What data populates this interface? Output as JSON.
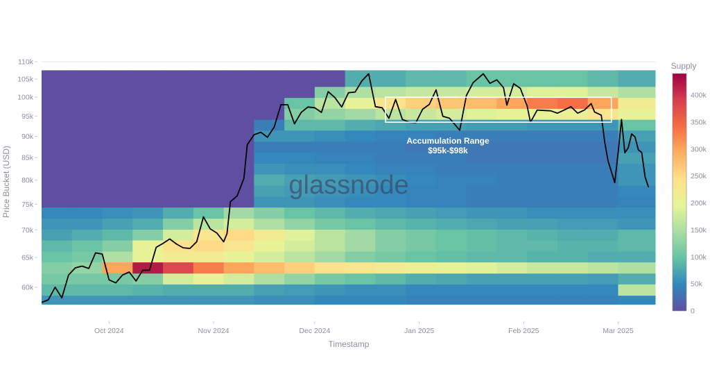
{
  "chart_data": {
    "type": "heatmap",
    "title": "",
    "xlabel": "Timestamp",
    "ylabel": "Price Bucket (USD)",
    "yscale": "log",
    "ylim": [
      57300,
      110000
    ],
    "xlim": [
      "2024-09-11",
      "2025-03-12"
    ],
    "y_ticks": [
      {
        "value": 60000,
        "label": "60k"
      },
      {
        "value": 65000,
        "label": "65k"
      },
      {
        "value": 70000,
        "label": "70k"
      },
      {
        "value": 75000,
        "label": "75k"
      },
      {
        "value": 80000,
        "label": "80k"
      },
      {
        "value": 85000,
        "label": "85k"
      },
      {
        "value": 90000,
        "label": "90k"
      },
      {
        "value": 95000,
        "label": "95k"
      },
      {
        "value": 100000,
        "label": "100k"
      },
      {
        "value": 105000,
        "label": "105k"
      },
      {
        "value": 110000,
        "label": "110k"
      }
    ],
    "x_ticks": [
      {
        "date": "2024-10-01",
        "label": "Oct 2024"
      },
      {
        "date": "2024-11-01",
        "label": "Nov 2024"
      },
      {
        "date": "2024-12-01",
        "label": "Dec 2024"
      },
      {
        "date": "2025-01-01",
        "label": "Jan 2025"
      },
      {
        "date": "2025-02-01",
        "label": "Feb 2025"
      },
      {
        "date": "2025-03-01",
        "label": "Mar 2025"
      }
    ],
    "colorbar": {
      "title": "Supply",
      "range": [
        0,
        440000
      ],
      "ticks": [
        {
          "value": 0,
          "label": "0"
        },
        {
          "value": 50000,
          "label": "50k"
        },
        {
          "value": 100000,
          "label": "100k"
        },
        {
          "value": 150000,
          "label": "150k"
        },
        {
          "value": 200000,
          "label": "200k"
        },
        {
          "value": 250000,
          "label": "250k"
        },
        {
          "value": 300000,
          "label": "300k"
        },
        {
          "value": 350000,
          "label": "350k"
        },
        {
          "value": 400000,
          "label": "400k"
        }
      ],
      "colorscale": [
        "#5e4fa2",
        "#3288bd",
        "#66c2a5",
        "#abdda4",
        "#e6f598",
        "#fee08b",
        "#fdae61",
        "#f46d43",
        "#d53e4f",
        "#9e0142"
      ]
    },
    "heatmap": {
      "value_unit": "k BTC",
      "column_dates": [
        "2024-09-11",
        "2024-09-20",
        "2024-09-29",
        "2024-10-08",
        "2024-10-17",
        "2024-10-26",
        "2024-11-04",
        "2024-11-13",
        "2024-11-22",
        "2024-12-01",
        "2024-12-10",
        "2024-12-19",
        "2024-12-28",
        "2025-01-06",
        "2025-01-15",
        "2025-01-24",
        "2025-02-02",
        "2025-02-11",
        "2025-02-20",
        "2025-03-01",
        "2025-03-12"
      ],
      "bucket_edges": [
        57300,
        58700,
        60500,
        62300,
        64200,
        66100,
        68100,
        70100,
        72200,
        74400,
        76600,
        78900,
        81300,
        83700,
        86200,
        88800,
        91500,
        94200,
        97000,
        99900,
        102900,
        107500
      ],
      "values": [
        [
          60,
          60,
          60,
          60,
          60,
          60,
          60,
          55,
          55,
          50,
          50,
          50,
          45,
          45,
          45,
          45,
          45,
          45,
          45,
          50
        ],
        [
          90,
          90,
          90,
          85,
          80,
          80,
          80,
          70,
          65,
          60,
          55,
          55,
          50,
          50,
          50,
          50,
          50,
          50,
          50,
          160
        ],
        [
          110,
          110,
          110,
          120,
          180,
          200,
          180,
          150,
          130,
          110,
          100,
          90,
          80,
          75,
          70,
          70,
          70,
          70,
          65,
          80
        ],
        [
          120,
          130,
          300,
          420,
          380,
          330,
          300,
          280,
          260,
          240,
          230,
          220,
          210,
          200,
          190,
          180,
          170,
          170,
          160,
          150
        ],
        [
          100,
          110,
          150,
          200,
          220,
          220,
          200,
          180,
          160,
          140,
          120,
          110,
          100,
          95,
          90,
          90,
          85,
          85,
          80,
          80
        ],
        [
          90,
          100,
          120,
          200,
          240,
          250,
          230,
          200,
          180,
          160,
          140,
          120,
          110,
          100,
          95,
          90,
          90,
          85,
          85,
          90
        ],
        [
          70,
          80,
          90,
          120,
          180,
          230,
          250,
          220,
          190,
          160,
          140,
          120,
          110,
          100,
          95,
          90,
          85,
          80,
          80,
          90
        ],
        [
          60,
          60,
          70,
          80,
          120,
          160,
          180,
          150,
          130,
          110,
          100,
          90,
          85,
          80,
          75,
          70,
          70,
          65,
          65,
          60
        ],
        [
          50,
          50,
          55,
          60,
          80,
          100,
          140,
          120,
          100,
          90,
          80,
          75,
          70,
          65,
          60,
          60,
          55,
          55,
          55,
          55
        ],
        [
          0,
          0,
          0,
          0,
          0,
          0,
          0,
          60,
          60,
          55,
          50,
          50,
          45,
          45,
          40,
          40,
          40,
          40,
          40,
          45
        ],
        [
          0,
          0,
          0,
          0,
          0,
          0,
          0,
          70,
          65,
          60,
          55,
          50,
          45,
          45,
          40,
          40,
          40,
          40,
          40,
          50
        ],
        [
          0,
          0,
          0,
          0,
          0,
          0,
          0,
          80,
          70,
          65,
          60,
          55,
          50,
          45,
          45,
          40,
          40,
          40,
          40,
          60
        ],
        [
          0,
          0,
          0,
          0,
          0,
          0,
          0,
          60,
          55,
          55,
          50,
          45,
          45,
          40,
          40,
          40,
          40,
          40,
          40,
          60
        ],
        [
          0,
          0,
          0,
          0,
          0,
          0,
          0,
          50,
          50,
          45,
          45,
          40,
          40,
          40,
          35,
          35,
          35,
          35,
          35,
          70
        ],
        [
          0,
          0,
          0,
          0,
          0,
          0,
          0,
          40,
          40,
          40,
          40,
          40,
          35,
          35,
          35,
          35,
          35,
          35,
          35,
          60
        ],
        [
          0,
          0,
          0,
          0,
          0,
          0,
          0,
          60,
          60,
          55,
          50,
          45,
          45,
          40,
          40,
          40,
          40,
          40,
          40,
          70
        ],
        [
          0,
          0,
          0,
          0,
          0,
          0,
          0,
          40,
          90,
          90,
          80,
          75,
          70,
          70,
          65,
          65,
          60,
          60,
          60,
          100
        ],
        [
          0,
          0,
          0,
          0,
          0,
          0,
          0,
          0,
          120,
          130,
          140,
          160,
          170,
          180,
          190,
          200,
          200,
          210,
          230,
          200
        ],
        [
          0,
          0,
          0,
          0,
          0,
          0,
          0,
          0,
          100,
          160,
          200,
          240,
          260,
          270,
          280,
          300,
          330,
          340,
          300,
          220
        ],
        [
          0,
          0,
          0,
          0,
          0,
          0,
          0,
          0,
          0,
          120,
          150,
          160,
          170,
          170,
          180,
          180,
          190,
          190,
          170,
          150
        ],
        [
          0,
          0,
          0,
          0,
          0,
          0,
          0,
          0,
          0,
          0,
          80,
          80,
          90,
          90,
          100,
          100,
          100,
          100,
          90,
          80
        ],
        [
          0,
          0,
          0,
          0,
          0,
          0,
          0,
          0,
          0,
          0,
          0,
          50,
          50,
          50,
          60,
          60,
          60,
          60,
          60,
          60
        ]
      ]
    },
    "price_series": {
      "name": "BTC Price",
      "color": "#000000",
      "points": [
        [
          "2024-09-11",
          57600
        ],
        [
          "2024-09-13",
          58000
        ],
        [
          "2024-09-15",
          60000
        ],
        [
          "2024-09-17",
          58300
        ],
        [
          "2024-09-19",
          62000
        ],
        [
          "2024-09-21",
          63200
        ],
        [
          "2024-09-23",
          63500
        ],
        [
          "2024-09-25",
          63100
        ],
        [
          "2024-09-27",
          65800
        ],
        [
          "2024-09-29",
          65600
        ],
        [
          "2024-10-01",
          61200
        ],
        [
          "2024-10-03",
          60700
        ],
        [
          "2024-10-05",
          62000
        ],
        [
          "2024-10-07",
          62500
        ],
        [
          "2024-10-09",
          61000
        ],
        [
          "2024-10-11",
          62800
        ],
        [
          "2024-10-13",
          62800
        ],
        [
          "2024-10-15",
          66800
        ],
        [
          "2024-10-17",
          67500
        ],
        [
          "2024-10-19",
          68300
        ],
        [
          "2024-10-21",
          67400
        ],
        [
          "2024-10-23",
          66700
        ],
        [
          "2024-10-25",
          66600
        ],
        [
          "2024-10-27",
          67800
        ],
        [
          "2024-10-29",
          72500
        ],
        [
          "2024-10-31",
          70200
        ],
        [
          "2024-11-02",
          69400
        ],
        [
          "2024-11-04",
          67800
        ],
        [
          "2024-11-05",
          69300
        ],
        [
          "2024-11-06",
          75500
        ],
        [
          "2024-11-08",
          76700
        ],
        [
          "2024-11-10",
          80400
        ],
        [
          "2024-11-11",
          88000
        ],
        [
          "2024-11-13",
          90400
        ],
        [
          "2024-11-15",
          91000
        ],
        [
          "2024-11-17",
          89800
        ],
        [
          "2024-11-19",
          92300
        ],
        [
          "2024-11-21",
          98000
        ],
        [
          "2024-11-23",
          98000
        ],
        [
          "2024-11-25",
          93100
        ],
        [
          "2024-11-27",
          96000
        ],
        [
          "2024-11-29",
          97400
        ],
        [
          "2024-12-01",
          97200
        ],
        [
          "2024-12-03",
          96000
        ],
        [
          "2024-12-05",
          101500
        ],
        [
          "2024-12-07",
          99900
        ],
        [
          "2024-12-09",
          97400
        ],
        [
          "2024-12-11",
          101200
        ],
        [
          "2024-12-13",
          101400
        ],
        [
          "2024-12-15",
          104500
        ],
        [
          "2024-12-17",
          106500
        ],
        [
          "2024-12-19",
          97500
        ],
        [
          "2024-12-21",
          97200
        ],
        [
          "2024-12-23",
          94500
        ],
        [
          "2024-12-25",
          99400
        ],
        [
          "2024-12-27",
          94200
        ],
        [
          "2024-12-29",
          93500
        ],
        [
          "2024-12-31",
          93400
        ],
        [
          "2025-01-02",
          96800
        ],
        [
          "2025-01-04",
          98100
        ],
        [
          "2025-01-06",
          102000
        ],
        [
          "2025-01-08",
          95000
        ],
        [
          "2025-01-10",
          94500
        ],
        [
          "2025-01-13",
          91500
        ],
        [
          "2025-01-15",
          100500
        ],
        [
          "2025-01-17",
          104000
        ],
        [
          "2025-01-20",
          106500
        ],
        [
          "2025-01-22",
          103800
        ],
        [
          "2025-01-24",
          104800
        ],
        [
          "2025-01-26",
          102600
        ],
        [
          "2025-01-27",
          97900
        ],
        [
          "2025-01-29",
          103700
        ],
        [
          "2025-01-31",
          102400
        ],
        [
          "2025-02-02",
          97700
        ],
        [
          "2025-02-03",
          93500
        ],
        [
          "2025-02-05",
          96600
        ],
        [
          "2025-02-07",
          96500
        ],
        [
          "2025-02-09",
          96400
        ],
        [
          "2025-02-11",
          95800
        ],
        [
          "2025-02-13",
          96600
        ],
        [
          "2025-02-15",
          97500
        ],
        [
          "2025-02-17",
          95800
        ],
        [
          "2025-02-19",
          96600
        ],
        [
          "2025-02-21",
          98300
        ],
        [
          "2025-02-22",
          96100
        ],
        [
          "2025-02-24",
          95300
        ],
        [
          "2025-02-25",
          88700
        ],
        [
          "2025-02-26",
          84300
        ],
        [
          "2025-02-28",
          79500
        ],
        [
          "2025-03-01",
          86100
        ],
        [
          "2025-03-02",
          94200
        ],
        [
          "2025-03-03",
          86100
        ],
        [
          "2025-03-04",
          87300
        ],
        [
          "2025-03-05",
          90600
        ],
        [
          "2025-03-06",
          89900
        ],
        [
          "2025-03-07",
          86800
        ],
        [
          "2025-03-08",
          86200
        ],
        [
          "2025-03-09",
          80700
        ],
        [
          "2025-03-10",
          78500
        ]
      ]
    },
    "annotations": [
      {
        "type": "rect",
        "x0": "2024-12-22",
        "x1": "2025-02-27",
        "y0": 93500,
        "y1": 100000,
        "color": "#ffffff"
      },
      {
        "type": "text",
        "lines": [
          "Accumulation Range",
          "$95k-$98k"
        ],
        "color": "#ffffff"
      }
    ],
    "watermark": "glassnode"
  }
}
